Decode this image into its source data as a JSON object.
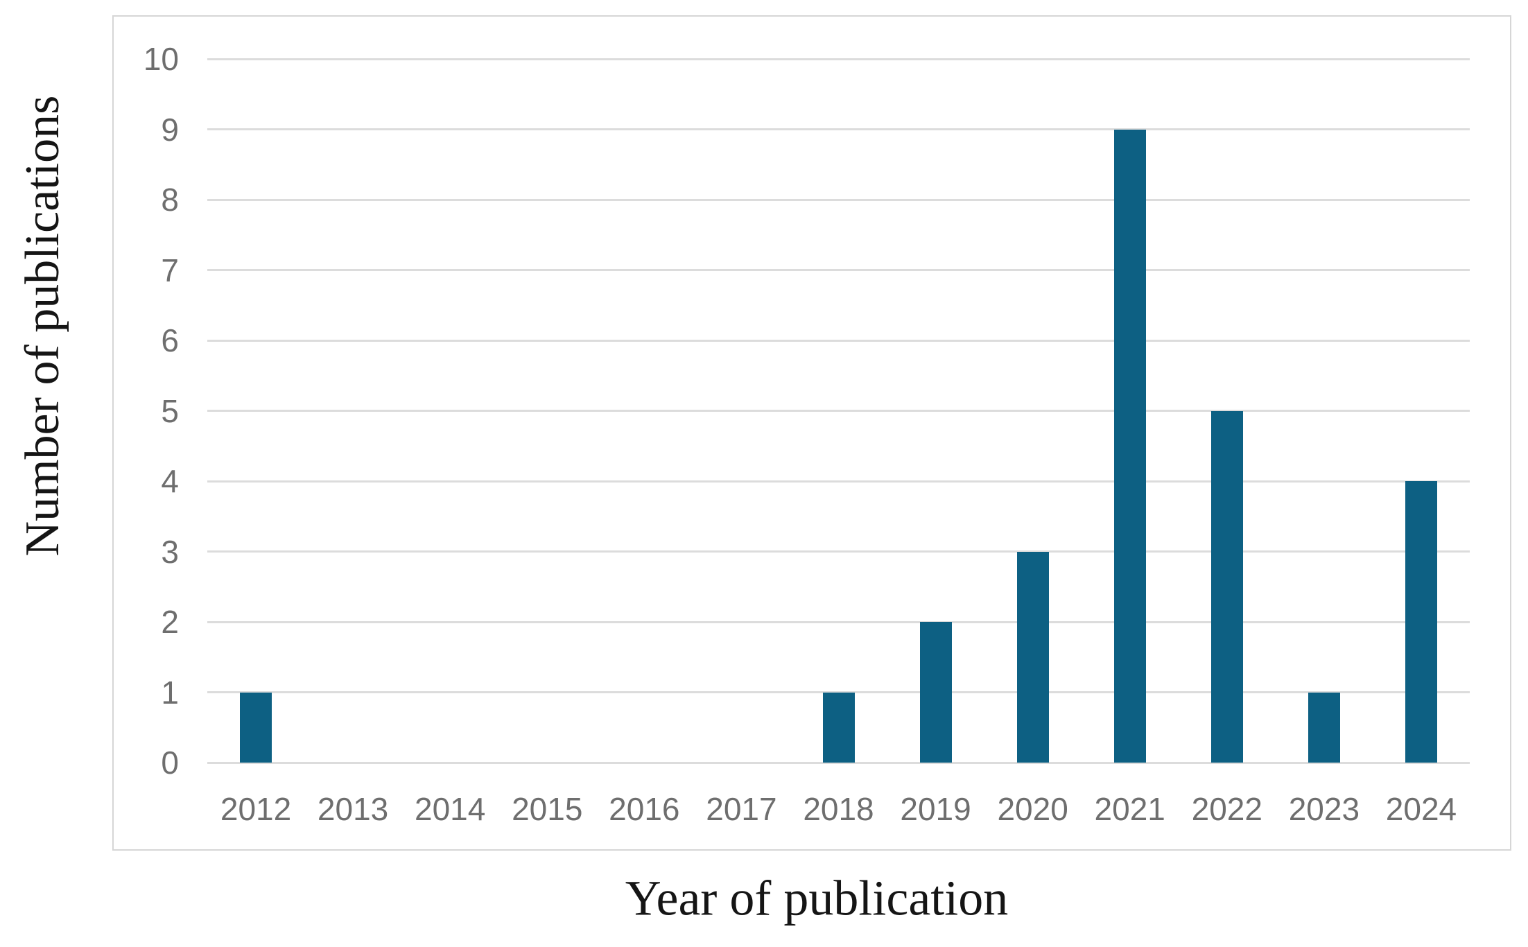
{
  "chart_data": {
    "type": "bar",
    "title": "",
    "xlabel": "Year of publication",
    "ylabel": "Number of publications",
    "categories": [
      "2012",
      "2013",
      "2014",
      "2015",
      "2016",
      "2017",
      "2018",
      "2019",
      "2020",
      "2021",
      "2022",
      "2023",
      "2024"
    ],
    "values": [
      1,
      0,
      0,
      0,
      0,
      0,
      1,
      2,
      3,
      9,
      5,
      1,
      4
    ],
    "ylim": [
      0,
      10
    ],
    "ytick_step": 1,
    "y_ticks": [
      "0",
      "1",
      "2",
      "3",
      "4",
      "5",
      "6",
      "7",
      "8",
      "9",
      "10"
    ],
    "grid": "horizontal-on",
    "legend": "none",
    "colors": {
      "bar": "#0d6083",
      "gridline": "#dcdcdc",
      "frame": "#d6d6d6",
      "tick_label": "#6e6e6e",
      "axis_title": "#151515",
      "background": "#ffffff"
    }
  }
}
